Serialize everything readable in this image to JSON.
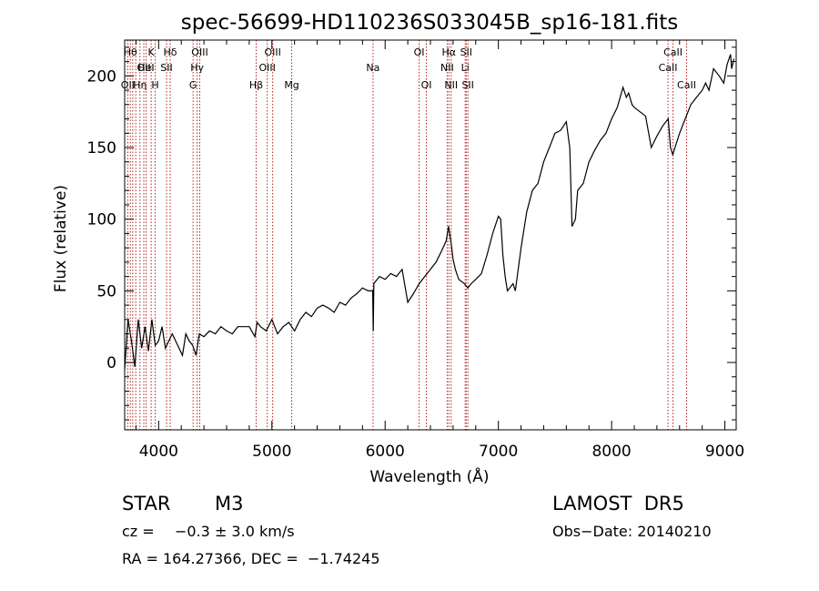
{
  "chart_data": {
    "type": "line",
    "title": "spec-56699-HD110236S033045B_sp16-181.fits",
    "xlabel": "Wavelength (Å)",
    "ylabel": "Flux (relative)",
    "xlim": [
      3700,
      9100
    ],
    "ylim": [
      -47,
      225
    ],
    "x_ticks": [
      4000,
      5000,
      6000,
      7000,
      8000,
      9000
    ],
    "y_ticks": [
      0,
      50,
      100,
      150,
      200
    ],
    "grid": false,
    "line_color": "#000000",
    "marker_color": "#b22222",
    "series": [
      {
        "x": [
          3700,
          3730,
          3760,
          3790,
          3820,
          3850,
          3880,
          3910,
          3940,
          3970,
          4000,
          4030,
          4060,
          4090,
          4120,
          4150,
          4180,
          4210,
          4240,
          4270,
          4300,
          4330,
          4360,
          4400,
          4450,
          4500,
          4550,
          4600,
          4650,
          4700,
          4750,
          4800,
          4850,
          4870,
          4900,
          4950,
          5000,
          5050,
          5100,
          5150,
          5200,
          5250,
          5300,
          5350,
          5400,
          5450,
          5500,
          5550,
          5600,
          5650,
          5700,
          5750,
          5800,
          5850,
          5890,
          5895,
          5900,
          5950,
          6000,
          6050,
          6100,
          6150,
          6200,
          6250,
          6300,
          6350,
          6400,
          6450,
          6500,
          6540,
          6560,
          6580,
          6600,
          6620,
          6650,
          6700,
          6730,
          6760,
          6800,
          6850,
          6900,
          6950,
          7000,
          7020,
          7040,
          7060,
          7080,
          7100,
          7130,
          7150,
          7200,
          7250,
          7300,
          7350,
          7400,
          7450,
          7500,
          7550,
          7600,
          7630,
          7650,
          7680,
          7700,
          7750,
          7800,
          7850,
          7900,
          7950,
          8000,
          8050,
          8100,
          8130,
          8150,
          8180,
          8200,
          8250,
          8300,
          8350,
          8400,
          8450,
          8500,
          8520,
          8540,
          8560,
          8580,
          8600,
          8650,
          8700,
          8750,
          8800,
          8830,
          8860,
          8900,
          8950,
          8990,
          9020,
          9050,
          9060,
          9080
        ],
        "y": [
          -5,
          30,
          15,
          -3,
          30,
          10,
          25,
          8,
          30,
          12,
          15,
          25,
          10,
          15,
          20,
          15,
          10,
          5,
          20,
          15,
          12,
          5,
          20,
          18,
          22,
          20,
          25,
          22,
          20,
          25,
          25,
          25,
          18,
          28,
          25,
          22,
          30,
          20,
          25,
          28,
          22,
          30,
          35,
          32,
          38,
          40,
          38,
          35,
          42,
          40,
          45,
          48,
          52,
          50,
          50,
          22,
          55,
          60,
          58,
          62,
          60,
          65,
          42,
          48,
          55,
          60,
          65,
          70,
          78,
          85,
          95,
          85,
          72,
          65,
          58,
          55,
          52,
          55,
          58,
          62,
          75,
          90,
          102,
          100,
          75,
          60,
          50,
          52,
          55,
          50,
          80,
          105,
          120,
          125,
          140,
          150,
          160,
          162,
          168,
          150,
          95,
          100,
          120,
          125,
          140,
          148,
          155,
          160,
          170,
          178,
          192,
          185,
          188,
          180,
          178,
          175,
          172,
          150,
          158,
          165,
          170,
          150,
          145,
          150,
          155,
          160,
          170,
          180,
          185,
          190,
          195,
          190,
          205,
          200,
          195,
          208,
          215,
          205,
          212
        ]
      }
    ],
    "line_markers": [
      {
        "wl": 3727,
        "label": "OII",
        "row": 3
      },
      {
        "wl": 3750,
        "label": "Hθ",
        "row": 1
      },
      {
        "wl": 3771,
        "label": "",
        "row": 0
      },
      {
        "wl": 3798,
        "label": "",
        "row": 0
      },
      {
        "wl": 3835,
        "label": "Hη",
        "row": 3
      },
      {
        "wl": 3869,
        "label": "OII",
        "row": 2
      },
      {
        "wl": 3889,
        "label": "HeI",
        "row": 2
      },
      {
        "wl": 3934,
        "label": "K",
        "row": 1
      },
      {
        "wl": 3969,
        "label": "H",
        "row": 3
      },
      {
        "wl": 4070,
        "label": "SII",
        "row": 2
      },
      {
        "wl": 4102,
        "label": "Hδ",
        "row": 1
      },
      {
        "wl": 4304,
        "label": "G",
        "row": 3
      },
      {
        "wl": 4340,
        "label": "Hγ",
        "row": 2
      },
      {
        "wl": 4363,
        "label": "OIII",
        "row": 1
      },
      {
        "wl": 4861,
        "label": "Hβ",
        "row": 3
      },
      {
        "wl": 4959,
        "label": "OIII",
        "row": 2
      },
      {
        "wl": 5007,
        "label": "OIII",
        "row": 1
      },
      {
        "wl": 5175,
        "label": "Mg",
        "row": 3
      },
      {
        "wl": 5893,
        "label": "Na",
        "row": 2
      },
      {
        "wl": 6300,
        "label": "OI",
        "row": 1
      },
      {
        "wl": 6364,
        "label": "OI",
        "row": 3
      },
      {
        "wl": 6548,
        "label": "NII",
        "row": 2
      },
      {
        "wl": 6563,
        "label": "Hα",
        "row": 1
      },
      {
        "wl": 6583,
        "label": "NII",
        "row": 3
      },
      {
        "wl": 6707,
        "label": "Li",
        "row": 2
      },
      {
        "wl": 6716,
        "label": "SII",
        "row": 1
      },
      {
        "wl": 6731,
        "label": "SII",
        "row": 3
      },
      {
        "wl": 8498,
        "label": "CaII",
        "row": 2
      },
      {
        "wl": 8542,
        "label": "CaII",
        "row": 1
      },
      {
        "wl": 8662,
        "label": "CaII",
        "row": 3
      }
    ]
  },
  "info": {
    "class": "STAR",
    "subclass": "M3",
    "cz_label": "cz = ",
    "cz_value": "−0.3 ± 3.0 km/s",
    "coords": "RA = 164.27366, DEC =  −1.74245",
    "survey": "LAMOST  DR5",
    "obs_date": "Obs−Date: 20140210"
  }
}
